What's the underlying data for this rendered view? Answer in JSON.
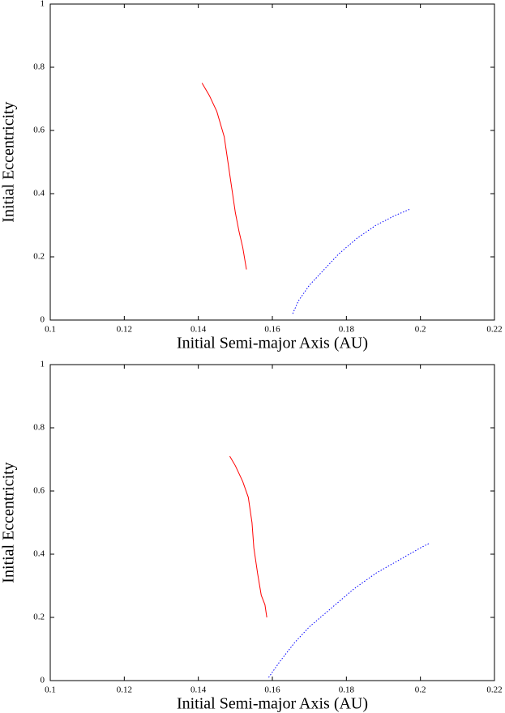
{
  "chart_data": [
    {
      "type": "line",
      "xlabel": "Initial Semi-major Axis (AU)",
      "ylabel": "Initial Eccentricity",
      "xlim": [
        0.1,
        0.22
      ],
      "ylim": [
        0,
        1
      ],
      "xticks": [
        0.1,
        0.12,
        0.14,
        0.16,
        0.18,
        0.2,
        0.22
      ],
      "yticks": [
        0,
        0.2,
        0.4,
        0.6,
        0.8,
        1
      ],
      "series": [
        {
          "color": "#ff0000",
          "linestyle": "solid",
          "x": [
            0.141,
            0.143,
            0.145,
            0.147,
            0.148,
            0.149,
            0.15,
            0.151,
            0.152,
            0.153
          ],
          "values": [
            0.75,
            0.71,
            0.66,
            0.58,
            0.5,
            0.42,
            0.34,
            0.28,
            0.23,
            0.16
          ]
        },
        {
          "color": "#0000ff",
          "linestyle": "dotted",
          "x": [
            0.1655,
            0.167,
            0.17,
            0.174,
            0.178,
            0.183,
            0.188,
            0.193,
            0.197
          ],
          "values": [
            0.02,
            0.06,
            0.11,
            0.16,
            0.21,
            0.26,
            0.3,
            0.33,
            0.35
          ]
        }
      ]
    },
    {
      "type": "line",
      "xlabel": "Initial Semi-major Axis (AU)",
      "ylabel": "Initial Eccentricity",
      "xlim": [
        0.1,
        0.22
      ],
      "ylim": [
        0,
        1
      ],
      "xticks": [
        0.1,
        0.12,
        0.14,
        0.16,
        0.18,
        0.2,
        0.22
      ],
      "yticks": [
        0,
        0.2,
        0.4,
        0.6,
        0.8,
        1
      ],
      "series": [
        {
          "color": "#ff0000",
          "linestyle": "solid",
          "x": [
            0.1485,
            0.15,
            0.152,
            0.1535,
            0.1545,
            0.155,
            0.156,
            0.157,
            0.158,
            0.1585
          ],
          "values": [
            0.71,
            0.68,
            0.63,
            0.58,
            0.5,
            0.42,
            0.34,
            0.27,
            0.24,
            0.2
          ]
        },
        {
          "color": "#0000ff",
          "linestyle": "dotted",
          "x": [
            0.159,
            0.162,
            0.166,
            0.17,
            0.176,
            0.182,
            0.188,
            0.194,
            0.2,
            0.2025
          ],
          "values": [
            0.01,
            0.06,
            0.12,
            0.17,
            0.23,
            0.29,
            0.34,
            0.38,
            0.42,
            0.435
          ]
        }
      ]
    }
  ]
}
